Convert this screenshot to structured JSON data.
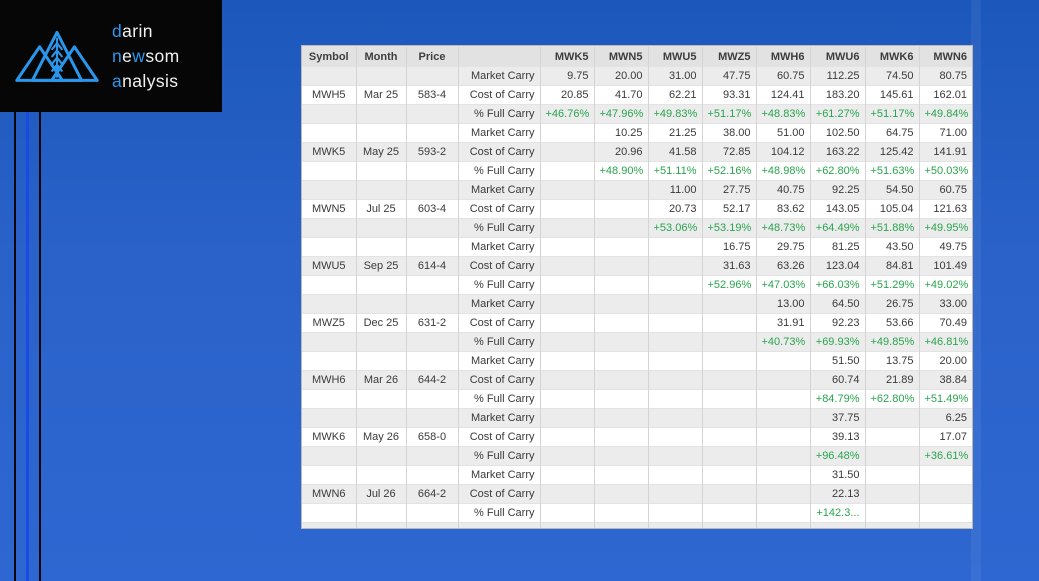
{
  "colors": {
    "background_blue": "#2a62c9",
    "logo_accent_blue": "#2a97ec",
    "decor_line_blue": "#1a49e5",
    "positive_green": "#28a54e"
  },
  "logo": {
    "lines": [
      [
        {
          "t": "d",
          "acc": true
        },
        {
          "t": "arin",
          "acc": false
        }
      ],
      [
        {
          "t": "n",
          "acc": true
        },
        {
          "t": "e",
          "acc": false
        },
        {
          "t": "w",
          "acc": true
        },
        {
          "t": "som",
          "acc": false
        }
      ],
      [
        {
          "t": "a",
          "acc": true
        },
        {
          "t": "nalysis",
          "acc": false
        }
      ]
    ]
  },
  "table": {
    "headers": [
      "Symbol",
      "Month",
      "Price",
      "",
      "MWK5",
      "MWN5",
      "MWU5",
      "MWZ5",
      "MWH6",
      "MWU6",
      "MWK6",
      "MWN6"
    ],
    "row_labels": {
      "market": "Market Carry",
      "cost": "Cost of Carry",
      "pct": "% Full Carry"
    },
    "sections": [
      {
        "symbol": "MWH5",
        "month": "Mar 25",
        "price": "583-4",
        "market_carry": [
          "9.75",
          "20.00",
          "31.00",
          "47.75",
          "60.75",
          "112.25",
          "74.50",
          "80.75"
        ],
        "cost_of_carry": [
          "20.85",
          "41.70",
          "62.21",
          "93.31",
          "124.41",
          "183.20",
          "145.61",
          "162.01"
        ],
        "pct_full_carry": [
          "+46.76%",
          "+47.96%",
          "+49.83%",
          "+51.17%",
          "+48.83%",
          "+61.27%",
          "+51.17%",
          "+49.84%"
        ]
      },
      {
        "symbol": "MWK5",
        "month": "May 25",
        "price": "593-2",
        "market_carry": [
          "",
          "10.25",
          "21.25",
          "38.00",
          "51.00",
          "102.50",
          "64.75",
          "71.00"
        ],
        "cost_of_carry": [
          "",
          "20.96",
          "41.58",
          "72.85",
          "104.12",
          "163.22",
          "125.42",
          "141.91"
        ],
        "pct_full_carry": [
          "",
          "+48.90%",
          "+51.11%",
          "+52.16%",
          "+48.98%",
          "+62.80%",
          "+51.63%",
          "+50.03%"
        ]
      },
      {
        "symbol": "MWN5",
        "month": "Jul 25",
        "price": "603-4",
        "market_carry": [
          "",
          "",
          "11.00",
          "27.75",
          "40.75",
          "92.25",
          "54.50",
          "60.75"
        ],
        "cost_of_carry": [
          "",
          "",
          "20.73",
          "52.17",
          "83.62",
          "143.05",
          "105.04",
          "121.63"
        ],
        "pct_full_carry": [
          "",
          "",
          "+53.06%",
          "+53.19%",
          "+48.73%",
          "+64.49%",
          "+51.88%",
          "+49.95%"
        ]
      },
      {
        "symbol": "MWU5",
        "month": "Sep 25",
        "price": "614-4",
        "market_carry": [
          "",
          "",
          "",
          "16.75",
          "29.75",
          "81.25",
          "43.50",
          "49.75"
        ],
        "cost_of_carry": [
          "",
          "",
          "",
          "31.63",
          "63.26",
          "123.04",
          "84.81",
          "101.49"
        ],
        "pct_full_carry": [
          "",
          "",
          "",
          "+52.96%",
          "+47.03%",
          "+66.03%",
          "+51.29%",
          "+49.02%"
        ]
      },
      {
        "symbol": "MWZ5",
        "month": "Dec 25",
        "price": "631-2",
        "market_carry": [
          "",
          "",
          "",
          "",
          "13.00",
          "64.50",
          "26.75",
          "33.00"
        ],
        "cost_of_carry": [
          "",
          "",
          "",
          "",
          "31.91",
          "92.23",
          "53.66",
          "70.49"
        ],
        "pct_full_carry": [
          "",
          "",
          "",
          "",
          "+40.73%",
          "+69.93%",
          "+49.85%",
          "+46.81%"
        ]
      },
      {
        "symbol": "MWH6",
        "month": "Mar 26",
        "price": "644-2",
        "market_carry": [
          "",
          "",
          "",
          "",
          "",
          "51.50",
          "13.75",
          "20.00"
        ],
        "cost_of_carry": [
          "",
          "",
          "",
          "",
          "",
          "60.74",
          "21.89",
          "38.84"
        ],
        "pct_full_carry": [
          "",
          "",
          "",
          "",
          "",
          "+84.79%",
          "+62.80%",
          "+51.49%"
        ]
      },
      {
        "symbol": "MWK6",
        "month": "May 26",
        "price": "658-0",
        "market_carry": [
          "",
          "",
          "",
          "",
          "",
          "37.75",
          "",
          "6.25"
        ],
        "cost_of_carry": [
          "",
          "",
          "",
          "",
          "",
          "39.13",
          "",
          "17.07"
        ],
        "pct_full_carry": [
          "",
          "",
          "",
          "",
          "",
          "+96.48%",
          "",
          "+36.61%"
        ]
      },
      {
        "symbol": "MWN6",
        "month": "Jul 26",
        "price": "664-2",
        "market_carry": [
          "",
          "",
          "",
          "",
          "",
          "31.50",
          "",
          ""
        ],
        "cost_of_carry": [
          "",
          "",
          "",
          "",
          "",
          "22.13",
          "",
          ""
        ],
        "pct_full_carry": [
          "",
          "",
          "",
          "",
          "",
          "+142.3...",
          "",
          ""
        ]
      }
    ]
  }
}
